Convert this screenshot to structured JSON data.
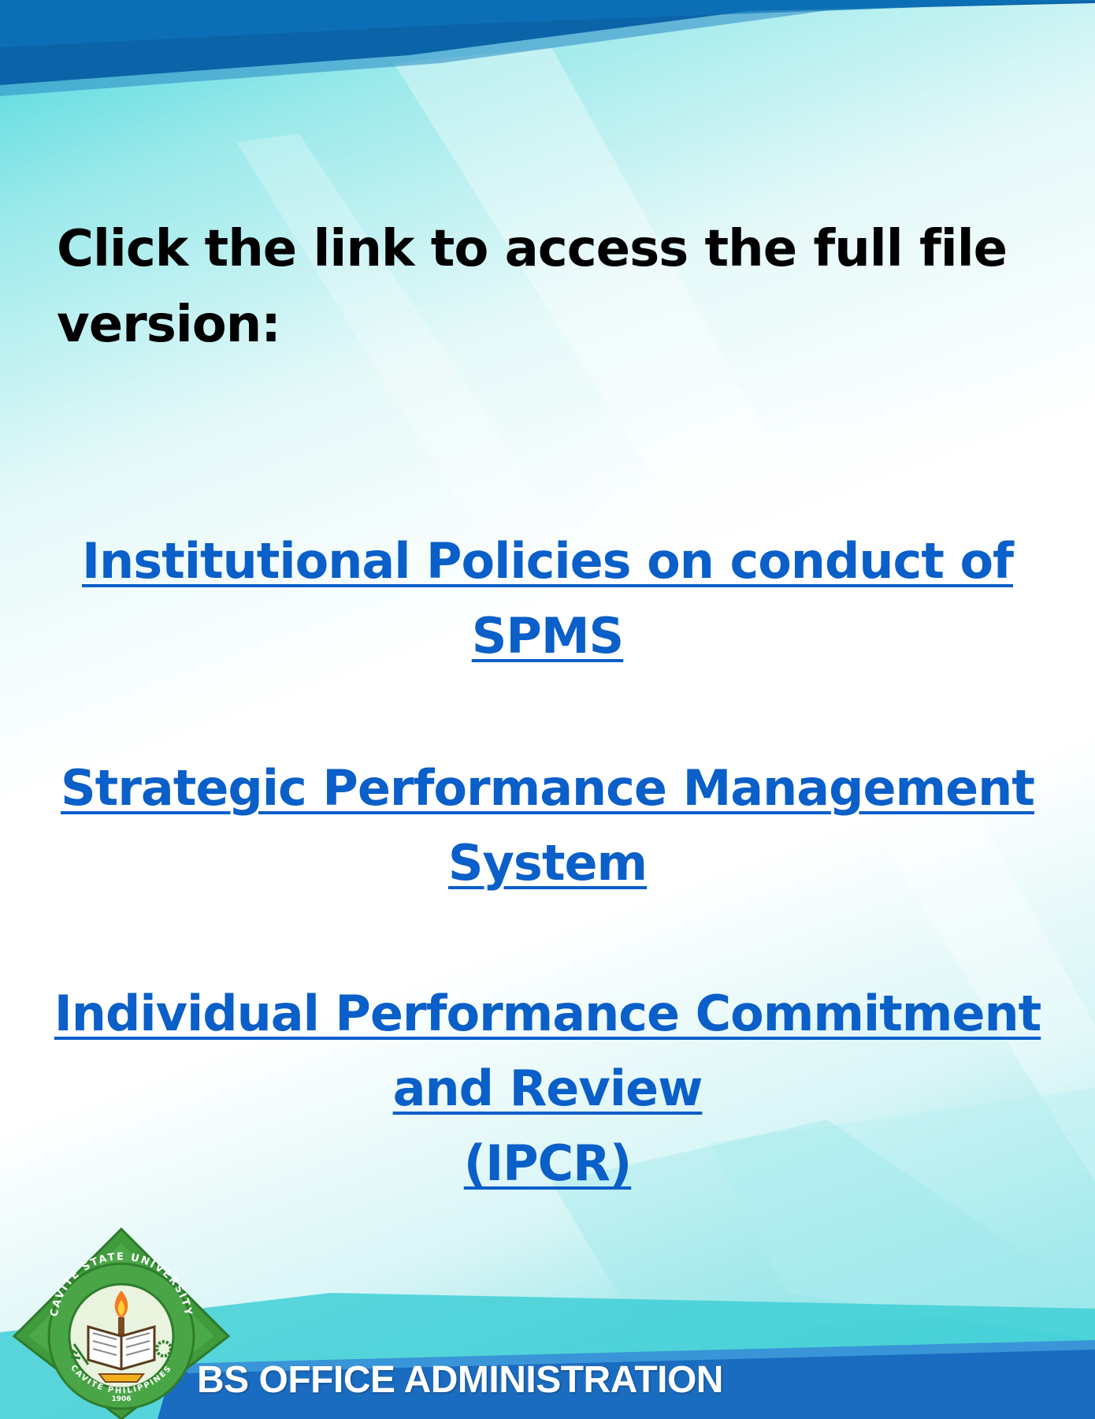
{
  "instruction": "Click the link to access the full file version:",
  "links": [
    {
      "lines": [
        "Institutional Policies on conduct of",
        "SPMS"
      ]
    },
    {
      "lines": [
        "Strategic Performance Management",
        "System"
      ]
    },
    {
      "lines": [
        "Individual Performance Commitment",
        "and Review",
        "(IPCR)"
      ]
    }
  ],
  "footer": {
    "program": "BS OFFICE ADMINISTRATION",
    "seal_text_top": "CAVITE STATE UNIVERSITY",
    "seal_text_bottom": "CAVITE PHILIPPINES",
    "seal_year": "1906"
  },
  "colors": {
    "link": "#0a5fc8",
    "top_band": "#0b63a8",
    "bottom_band": "#1a6cc0",
    "background_teal": "#44d6dc",
    "seal_green": "#3f9b3c"
  }
}
